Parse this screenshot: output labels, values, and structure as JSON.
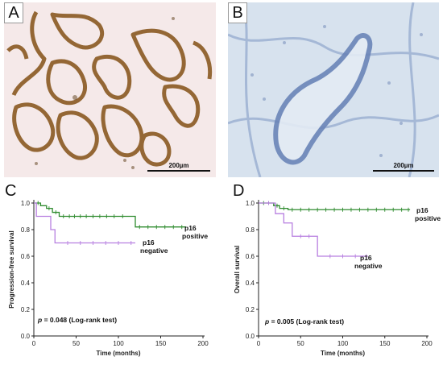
{
  "panels": {
    "A": {
      "letter": "A",
      "scale_bar": "200µm"
    },
    "B": {
      "letter": "B",
      "scale_bar": "200µm"
    },
    "C": {
      "letter": "C"
    },
    "D": {
      "letter": "D"
    }
  },
  "colors": {
    "p16_positive": "#2e8b2e",
    "p16_negative": "#b77fe0",
    "stain_brown": "#8a5a22",
    "tissue_pink": "#f0dada",
    "tissue_blue": "#c9d8ea"
  },
  "chart_data": [
    {
      "type": "line",
      "panel": "C",
      "xlabel": "Time (months)",
      "ylabel": "Progression-free survival",
      "xlim": [
        0,
        200
      ],
      "ylim": [
        0,
        1.0
      ],
      "xticks": [
        0,
        50,
        100,
        150,
        200
      ],
      "yticks": [
        0.0,
        0.2,
        0.4,
        0.6,
        0.8,
        1.0
      ],
      "annotation_p": "p",
      "annotation_rest": " = 0.048 (Log-rank test)",
      "series": [
        {
          "name_line1": "p16",
          "name_line2": "positive",
          "color_key": "p16_positive",
          "steps": [
            [
              0,
              1.0
            ],
            [
              8,
              0.98
            ],
            [
              15,
              0.96
            ],
            [
              22,
              0.93
            ],
            [
              30,
              0.9
            ],
            [
              120,
              0.9
            ],
            [
              120,
              0.82
            ],
            [
              180,
              0.82
            ]
          ],
          "censors": [
            [
              5,
              1.0
            ],
            [
              18,
              0.96
            ],
            [
              26,
              0.93
            ],
            [
              35,
              0.9
            ],
            [
              42,
              0.9
            ],
            [
              48,
              0.9
            ],
            [
              55,
              0.9
            ],
            [
              62,
              0.9
            ],
            [
              70,
              0.9
            ],
            [
              78,
              0.9
            ],
            [
              86,
              0.9
            ],
            [
              95,
              0.9
            ],
            [
              105,
              0.9
            ],
            [
              125,
              0.82
            ],
            [
              135,
              0.82
            ],
            [
              145,
              0.82
            ],
            [
              155,
              0.82
            ],
            [
              165,
              0.82
            ],
            [
              175,
              0.82
            ]
          ]
        },
        {
          "name_line1": "p16",
          "name_line2": "negative",
          "color_key": "p16_negative",
          "steps": [
            [
              0,
              1.0
            ],
            [
              3,
              0.9
            ],
            [
              20,
              0.9
            ],
            [
              20,
              0.8
            ],
            [
              25,
              0.8
            ],
            [
              25,
              0.7
            ],
            [
              120,
              0.7
            ]
          ],
          "censors": [
            [
              40,
              0.7
            ],
            [
              55,
              0.7
            ],
            [
              70,
              0.7
            ],
            [
              85,
              0.7
            ],
            [
              100,
              0.7
            ],
            [
              115,
              0.7
            ]
          ]
        }
      ]
    },
    {
      "type": "line",
      "panel": "D",
      "xlabel": "Time (months)",
      "ylabel": "Overall survival",
      "xlim": [
        0,
        200
      ],
      "ylim": [
        0,
        1.0
      ],
      "xticks": [
        0,
        50,
        100,
        150,
        200
      ],
      "yticks": [
        0.0,
        0.2,
        0.4,
        0.6,
        0.8,
        1.0
      ],
      "annotation_p": "p",
      "annotation_rest": " = 0.005 (Log-rank test)",
      "series": [
        {
          "name_line1": "p16",
          "name_line2": "positive",
          "color_key": "p16_positive",
          "steps": [
            [
              0,
              1.0
            ],
            [
              18,
              0.98
            ],
            [
              25,
              0.96
            ],
            [
              35,
              0.95
            ],
            [
              180,
              0.95
            ]
          ],
          "censors": [
            [
              6,
              1.0
            ],
            [
              12,
              1.0
            ],
            [
              22,
              0.98
            ],
            [
              30,
              0.96
            ],
            [
              40,
              0.95
            ],
            [
              50,
              0.95
            ],
            [
              60,
              0.95
            ],
            [
              70,
              0.95
            ],
            [
              80,
              0.95
            ],
            [
              90,
              0.95
            ],
            [
              100,
              0.95
            ],
            [
              110,
              0.95
            ],
            [
              120,
              0.95
            ],
            [
              130,
              0.95
            ],
            [
              140,
              0.95
            ],
            [
              150,
              0.95
            ],
            [
              160,
              0.95
            ],
            [
              170,
              0.95
            ],
            [
              178,
              0.95
            ]
          ]
        },
        {
          "name_line1": "p16",
          "name_line2": "negative",
          "color_key": "p16_negative",
          "steps": [
            [
              0,
              1.0
            ],
            [
              20,
              1.0
            ],
            [
              20,
              0.92
            ],
            [
              30,
              0.85
            ],
            [
              40,
              0.75
            ],
            [
              70,
              0.75
            ],
            [
              70,
              0.6
            ],
            [
              130,
              0.6
            ]
          ],
          "censors": [
            [
              12,
              1.0
            ],
            [
              50,
              0.75
            ],
            [
              60,
              0.75
            ],
            [
              85,
              0.6
            ],
            [
              100,
              0.6
            ],
            [
              115,
              0.6
            ],
            [
              128,
              0.6
            ]
          ]
        }
      ]
    }
  ]
}
